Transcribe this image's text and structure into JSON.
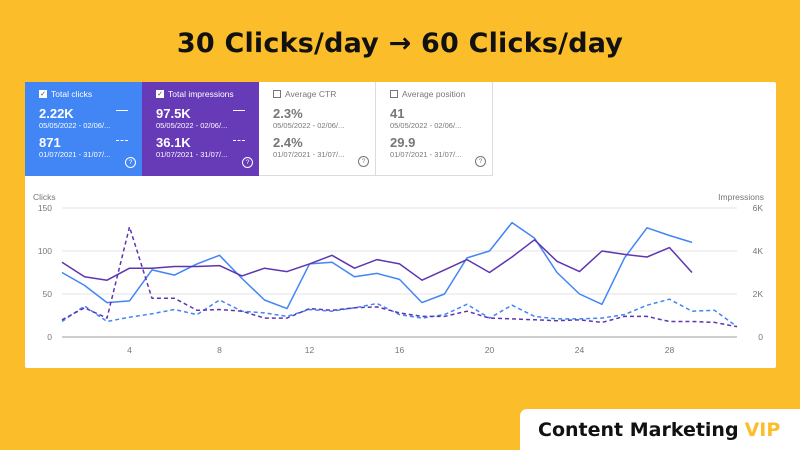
{
  "headline": "30 Clicks/day → 60 Clicks/day",
  "metrics": [
    {
      "label": "Total clicks",
      "checked": true,
      "color": "#4285f4",
      "value1": "2.22K",
      "range1": "05/05/2022 - 02/06/...",
      "value2": "871",
      "range2": "01/07/2021 - 31/07/..."
    },
    {
      "label": "Total impressions",
      "checked": true,
      "color": "#673ab7",
      "value1": "97.5K",
      "range1": "05/05/2022 - 02/06/...",
      "value2": "36.1K",
      "range2": "01/07/2021 - 31/07/..."
    },
    {
      "label": "Average CTR",
      "checked": false,
      "value1": "2.3%",
      "range1": "05/05/2022 - 02/06/...",
      "value2": "2.4%",
      "range2": "01/07/2021 - 31/07/..."
    },
    {
      "label": "Average position",
      "checked": false,
      "value1": "41",
      "range1": "05/05/2022 - 02/06/...",
      "value2": "29.9",
      "range2": "01/07/2021 - 31/07/..."
    }
  ],
  "chart_data": {
    "type": "line",
    "ylabel_left": "Clicks",
    "ylabel_right": "Impressions",
    "ylim_left": [
      0,
      150
    ],
    "ylim_right": [
      0,
      6000
    ],
    "yticks_left": [
      "0",
      "50",
      "100",
      "150"
    ],
    "yticks_right": [
      "0",
      "2K",
      "4K",
      "6K"
    ],
    "xticks": [
      "4",
      "8",
      "12",
      "16",
      "20",
      "24",
      "28"
    ],
    "grid": true,
    "x": [
      1,
      2,
      3,
      4,
      5,
      6,
      7,
      8,
      9,
      10,
      11,
      12,
      13,
      14,
      15,
      16,
      17,
      18,
      19,
      20,
      21,
      22,
      23,
      24,
      25,
      26,
      27,
      28,
      29,
      30,
      31
    ],
    "series": [
      {
        "name": "Total clicks",
        "style": "solid",
        "axis": "left",
        "color": "#4285f4",
        "values": [
          75,
          60,
          40,
          42,
          78,
          72,
          85,
          95,
          68,
          43,
          33,
          85,
          87,
          70,
          74,
          67,
          40,
          50,
          92,
          100,
          133,
          115,
          75,
          50,
          38,
          92,
          127,
          118,
          110,
          null,
          null
        ]
      },
      {
        "name": "Total impressions",
        "style": "solid",
        "axis": "left",
        "color": "#5e35b1",
        "values": [
          87,
          70,
          66,
          80,
          80,
          82,
          82,
          83,
          71,
          80,
          76,
          85,
          95,
          80,
          90,
          85,
          66,
          78,
          90,
          75,
          93,
          113,
          88,
          76,
          100,
          96,
          93,
          104,
          75,
          null,
          null
        ]
      },
      {
        "name": "Total clicks",
        "style": "dashed",
        "axis": "left",
        "color": "#4285f4",
        "values": [
          18,
          36,
          18,
          23,
          27,
          32,
          26,
          43,
          30,
          28,
          24,
          32,
          30,
          34,
          39,
          26,
          22,
          26,
          38,
          22,
          37,
          24,
          21,
          21,
          22,
          26,
          37,
          44,
          30,
          31,
          12
        ]
      },
      {
        "name": "Total impressions",
        "style": "dashed",
        "axis": "left",
        "color": "#5e35b1",
        "values": [
          20,
          34,
          22,
          128,
          45,
          45,
          31,
          32,
          30,
          22,
          22,
          33,
          31,
          34,
          35,
          28,
          24,
          24,
          30,
          22,
          21,
          20,
          19,
          20,
          17,
          24,
          24,
          18,
          18,
          17,
          12
        ]
      }
    ]
  },
  "brand": {
    "name": "Content Marketing",
    "suffix": "VIP"
  }
}
